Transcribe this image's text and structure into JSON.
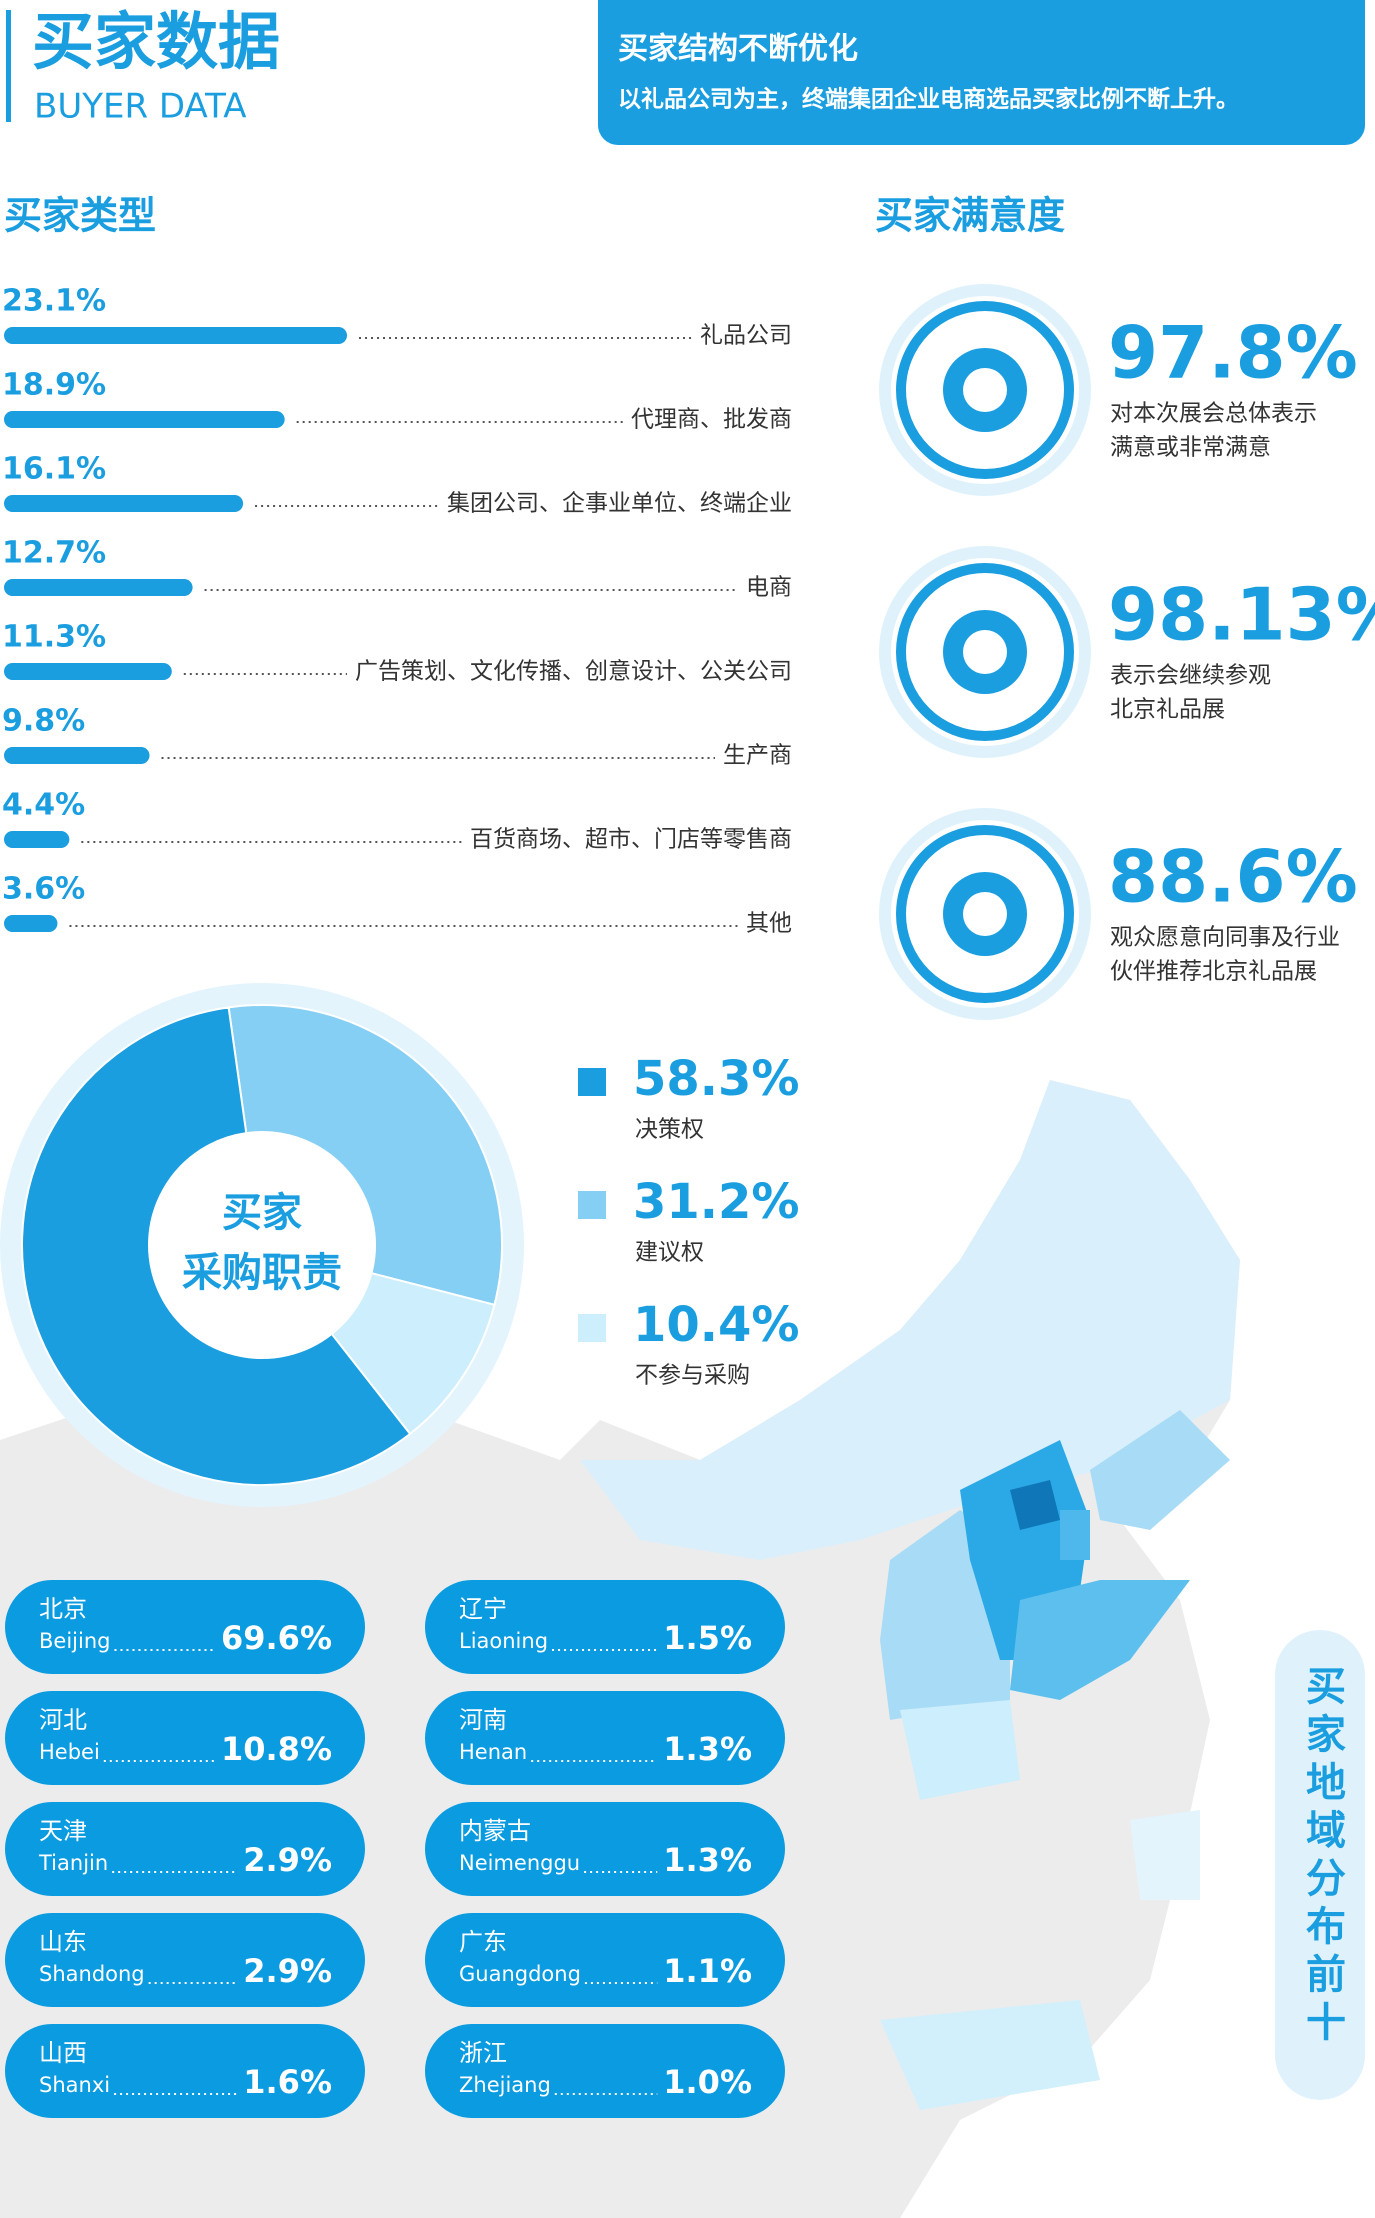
{
  "header": {
    "title": "买家数据",
    "subtitle": "BUYER DATA",
    "banner_title": "买家结构不断优化",
    "banner_text": "以礼品公司为主，终端集团企业电商选品买家比例不断上升。"
  },
  "chart_data": [
    {
      "type": "bar",
      "title": "买家类型",
      "categories": [
        "礼品公司",
        "代理商、批发商",
        "集团公司、企事业单位、终端企业",
        "电商",
        "广告策划、文化传播、创意设计、公关公司",
        "生产商",
        "百货商场、超市、门店等零售商",
        "其他"
      ],
      "values": [
        23.1,
        18.9,
        16.1,
        12.7,
        11.3,
        9.8,
        4.4,
        3.6
      ],
      "value_labels": [
        "23.1%",
        "18.9%",
        "16.1%",
        "12.7%",
        "11.3%",
        "9.8%",
        "4.4%",
        "3.6%"
      ],
      "color": "#1a9ee0"
    },
    {
      "type": "pie",
      "title": "买家",
      "subtitle": "采购职责",
      "categories": [
        "决策权",
        "建议权",
        "不参与采购"
      ],
      "values": [
        58.3,
        31.2,
        10.4
      ],
      "value_labels": [
        "58.3%",
        "31.2%",
        "10.4%"
      ],
      "colors": [
        "#1a9ee0",
        "#86cff4",
        "#cdeefc"
      ]
    }
  ],
  "satisfaction": {
    "title": "买家满意度",
    "items": [
      {
        "value": "97.8%",
        "lines": [
          "对本次展会总体表示",
          "满意或非常满意"
        ]
      },
      {
        "value": "98.13%",
        "lines": [
          "表示会继续参观",
          "北京礼品展"
        ]
      },
      {
        "value": "88.6%",
        "lines": [
          "观众愿意向同事及行业",
          "伙伴推荐北京礼品展"
        ]
      }
    ]
  },
  "regions": {
    "title": "买家地域分布前十",
    "items": [
      {
        "cn": "北京",
        "en": "Beijing",
        "value": "69.6%"
      },
      {
        "cn": "河北",
        "en": "Hebei",
        "value": "10.8%"
      },
      {
        "cn": "天津",
        "en": "Tianjin",
        "value": "2.9%"
      },
      {
        "cn": "山东",
        "en": "Shandong",
        "value": "2.9%"
      },
      {
        "cn": "山西",
        "en": "Shanxi",
        "value": "1.6%"
      },
      {
        "cn": "辽宁",
        "en": "Liaoning",
        "value": "1.5%"
      },
      {
        "cn": "河南",
        "en": "Henan",
        "value": "1.3%"
      },
      {
        "cn": "内蒙古",
        "en": "Neimenggu",
        "value": "1.3%"
      },
      {
        "cn": "广东",
        "en": "Guangdong",
        "value": "1.1%"
      },
      {
        "cn": "浙江",
        "en": "Zhejiang",
        "value": "1.0%"
      }
    ]
  }
}
